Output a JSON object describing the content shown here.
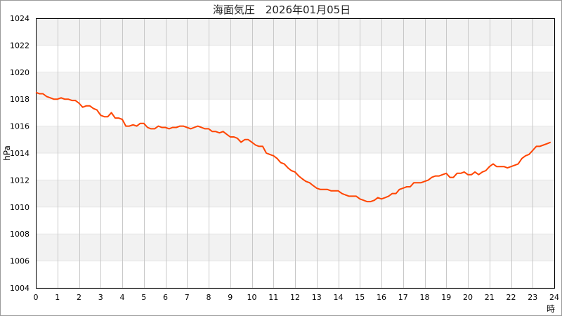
{
  "chart_data": {
    "type": "line",
    "title": "海面気圧　2026年01月05日",
    "xlabel": "時",
    "ylabel": "hPa",
    "xlim": [
      0,
      24
    ],
    "ylim": [
      1004,
      1024
    ],
    "x_ticks": [
      0,
      1,
      2,
      3,
      4,
      5,
      6,
      7,
      8,
      9,
      10,
      11,
      12,
      13,
      14,
      15,
      16,
      17,
      18,
      19,
      20,
      21,
      22,
      23,
      24
    ],
    "y_ticks": [
      1004,
      1006,
      1008,
      1010,
      1012,
      1014,
      1016,
      1018,
      1020,
      1022,
      1024
    ],
    "grid": true,
    "legend": "none",
    "colors": {
      "line": "#ff4500",
      "band": "#f2f2f2",
      "grid_v": "#c8c8c8",
      "grid_h": "#e6e6e6",
      "axis": "#000000"
    },
    "series": [
      {
        "x": [
          0,
          0.17,
          0.33,
          0.5,
          0.67,
          0.83,
          1,
          1.17,
          1.33,
          1.5,
          1.67,
          1.83,
          2,
          2.17,
          2.33,
          2.5,
          2.67,
          2.83,
          3,
          3.17,
          3.33,
          3.5,
          3.67,
          3.83,
          4,
          4.17,
          4.33,
          4.5,
          4.67,
          4.83,
          5,
          5.17,
          5.33,
          5.5,
          5.67,
          5.83,
          6,
          6.17,
          6.33,
          6.5,
          6.67,
          6.83,
          7,
          7.17,
          7.33,
          7.5,
          7.67,
          7.83,
          8,
          8.17,
          8.33,
          8.5,
          8.67,
          8.83,
          9,
          9.17,
          9.33,
          9.5,
          9.67,
          9.83,
          10,
          10.17,
          10.33,
          10.5,
          10.67,
          10.83,
          11,
          11.17,
          11.33,
          11.5,
          11.67,
          11.83,
          12,
          12.17,
          12.33,
          12.5,
          12.67,
          12.83,
          13,
          13.17,
          13.33,
          13.5,
          13.67,
          13.83,
          14,
          14.17,
          14.33,
          14.5,
          14.67,
          14.83,
          15,
          15.17,
          15.33,
          15.5,
          15.67,
          15.83,
          16,
          16.17,
          16.33,
          16.5,
          16.67,
          16.83,
          17,
          17.17,
          17.33,
          17.5,
          17.67,
          17.83,
          18,
          18.17,
          18.33,
          18.5,
          18.67,
          18.83,
          19,
          19.17,
          19.33,
          19.5,
          19.67,
          19.83,
          20,
          20.17,
          20.33,
          20.5,
          20.67,
          20.83,
          21,
          21.17,
          21.33,
          21.5,
          21.67,
          21.83,
          22,
          22.17,
          22.33,
          22.5,
          22.67,
          22.83,
          23,
          23.17,
          23.33,
          23.5,
          23.67,
          23.83
        ],
        "y": [
          1018.5,
          1018.4,
          1018.4,
          1018.2,
          1018.1,
          1018.0,
          1018.0,
          1018.1,
          1018.0,
          1018.0,
          1017.9,
          1017.9,
          1017.7,
          1017.4,
          1017.5,
          1017.5,
          1017.3,
          1017.2,
          1016.8,
          1016.7,
          1016.7,
          1017.0,
          1016.6,
          1016.6,
          1016.5,
          1016.0,
          1016.0,
          1016.1,
          1016.0,
          1016.2,
          1016.2,
          1015.9,
          1015.8,
          1015.8,
          1016.0,
          1015.9,
          1015.9,
          1015.8,
          1015.9,
          1015.9,
          1016.0,
          1016.0,
          1015.9,
          1015.8,
          1015.9,
          1016.0,
          1015.9,
          1015.8,
          1015.8,
          1015.6,
          1015.6,
          1015.5,
          1015.6,
          1015.4,
          1015.2,
          1015.2,
          1015.1,
          1014.8,
          1015.0,
          1015.0,
          1014.8,
          1014.6,
          1014.5,
          1014.5,
          1014.0,
          1013.9,
          1013.8,
          1013.6,
          1013.3,
          1013.2,
          1012.9,
          1012.7,
          1012.6,
          1012.3,
          1012.1,
          1011.9,
          1011.8,
          1011.6,
          1011.4,
          1011.3,
          1011.3,
          1011.3,
          1011.2,
          1011.2,
          1011.2,
          1011.0,
          1010.9,
          1010.8,
          1010.8,
          1010.8,
          1010.6,
          1010.5,
          1010.4,
          1010.4,
          1010.5,
          1010.7,
          1010.6,
          1010.7,
          1010.8,
          1011.0,
          1011.0,
          1011.3,
          1011.4,
          1011.5,
          1011.5,
          1011.8,
          1011.8,
          1011.8,
          1011.9,
          1012.0,
          1012.2,
          1012.3,
          1012.3,
          1012.4,
          1012.5,
          1012.2,
          1012.2,
          1012.5,
          1012.5,
          1012.6,
          1012.4,
          1012.4,
          1012.6,
          1012.4,
          1012.6,
          1012.7,
          1013.0,
          1013.2,
          1013.0,
          1013.0,
          1013.0,
          1012.9,
          1013.0,
          1013.1,
          1013.2,
          1013.6,
          1013.8,
          1013.9,
          1014.2,
          1014.5,
          1014.5,
          1014.6,
          1014.7,
          1014.8
        ]
      }
    ]
  }
}
